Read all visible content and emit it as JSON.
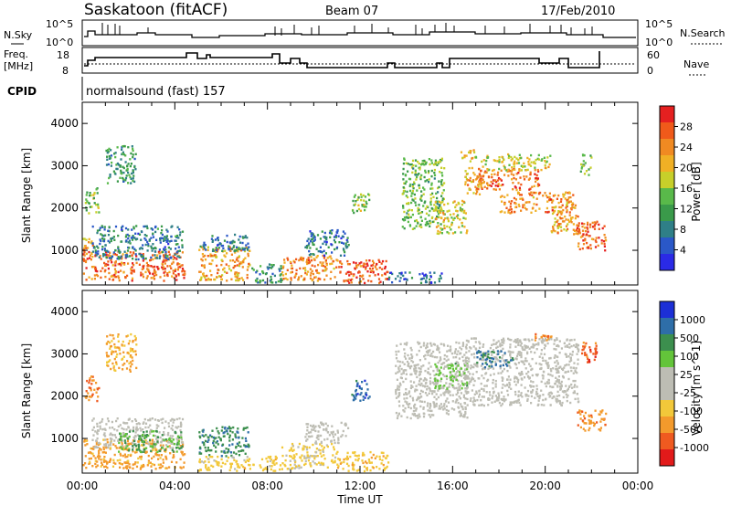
{
  "header": {
    "title": "Saskatoon (fitACF)",
    "beam": "Beam 07",
    "date": "17/Feb/2010"
  },
  "nsky_panel": {
    "left_label": "N.Sky",
    "right_label": "N.Search",
    "left_ticks": [
      "10^5",
      "10^0"
    ],
    "right_ticks": [
      "10^5",
      "10^0"
    ]
  },
  "freq_panel": {
    "left_label_1": "Freq.",
    "left_label_2": "[MHz]",
    "right_label": "Nave",
    "left_ticks": [
      "18",
      "8"
    ],
    "right_ticks": [
      "60",
      "0"
    ]
  },
  "cpid": {
    "label": "CPID",
    "value": "normalsound (fast) 157"
  },
  "colors": {
    "power": [
      "#2a2ae6",
      "#2a58c8",
      "#2f7f87",
      "#3a9a4a",
      "#59b94a",
      "#c7cf2a",
      "#f0b025",
      "#f08a22",
      "#f05a1a",
      "#e52020"
    ],
    "velocity": [
      "#1c2fd6",
      "#2e6ea8",
      "#3c8f4e",
      "#63c43a",
      "#bdbdb4",
      "#bdbdb4",
      "#f2c83a",
      "#f39a2c",
      "#ef5a20",
      "#e21a1a"
    ]
  },
  "chart_data": [
    {
      "type": "heatmap",
      "name": "power",
      "ylabel": "Slant Range [km]",
      "ylim": [
        180,
        4500
      ],
      "yticks": [
        "1000",
        "2000",
        "3000",
        "4000"
      ],
      "xlim": [
        0,
        24
      ],
      "colorbar_label": "Power [dB]",
      "colorbar_ticks": [
        "4",
        "8",
        "12",
        "16",
        "20",
        "24",
        "28"
      ],
      "colorbar_range": [
        0,
        32
      ],
      "patches": [
        {
          "t0": 0.0,
          "t1": 4.4,
          "r0": 300,
          "r1": 1000,
          "v": 26
        },
        {
          "t0": 0.0,
          "t1": 0.5,
          "r0": 900,
          "r1": 1300,
          "v": 22
        },
        {
          "t0": 0.1,
          "t1": 0.7,
          "r0": 1900,
          "r1": 2500,
          "v": 15
        },
        {
          "t0": 0.4,
          "t1": 4.3,
          "r0": 800,
          "r1": 1600,
          "v": 8
        },
        {
          "t0": 1.0,
          "t1": 2.3,
          "r0": 2600,
          "r1": 3500,
          "v": 11
        },
        {
          "t0": 5.0,
          "t1": 7.2,
          "r0": 300,
          "r1": 1100,
          "v": 22
        },
        {
          "t0": 5.0,
          "t1": 7.2,
          "r0": 1000,
          "r1": 1400,
          "v": 8
        },
        {
          "t0": 7.3,
          "t1": 8.6,
          "r0": 250,
          "r1": 700,
          "v": 10
        },
        {
          "t0": 8.6,
          "t1": 11.0,
          "r0": 300,
          "r1": 900,
          "v": 24
        },
        {
          "t0": 9.6,
          "t1": 11.5,
          "r0": 900,
          "r1": 1500,
          "v": 7
        },
        {
          "t0": 11.0,
          "t1": 13.2,
          "r0": 250,
          "r1": 800,
          "v": 27
        },
        {
          "t0": 11.6,
          "t1": 12.4,
          "r0": 1900,
          "r1": 2400,
          "v": 16
        },
        {
          "t0": 13.2,
          "t1": 15.5,
          "r0": 250,
          "r1": 500,
          "v": 6
        },
        {
          "t0": 13.8,
          "t1": 15.6,
          "r0": 1500,
          "r1": 3200,
          "v": 14
        },
        {
          "t0": 15.2,
          "t1": 16.6,
          "r0": 1400,
          "r1": 2200,
          "v": 18
        },
        {
          "t0": 16.5,
          "t1": 17.2,
          "r0": 2300,
          "r1": 3000,
          "v": 22
        },
        {
          "t0": 16.3,
          "t1": 17.0,
          "r0": 3100,
          "r1": 3400,
          "v": 20
        },
        {
          "t0": 17.0,
          "t1": 19.7,
          "r0": 2450,
          "r1": 2950,
          "v": 26
        },
        {
          "t0": 17.2,
          "t1": 20.2,
          "r0": 2900,
          "r1": 3300,
          "v": 18
        },
        {
          "t0": 18.0,
          "t1": 21.2,
          "r0": 1900,
          "r1": 2400,
          "v": 24
        },
        {
          "t0": 20.2,
          "t1": 21.4,
          "r0": 1400,
          "r1": 2100,
          "v": 22
        },
        {
          "t0": 21.3,
          "t1": 22.6,
          "r0": 1000,
          "r1": 1700,
          "v": 27
        },
        {
          "t0": 21.5,
          "t1": 22.0,
          "r0": 2800,
          "r1": 3300,
          "v": 14
        }
      ]
    },
    {
      "type": "heatmap",
      "name": "velocity",
      "ylabel": "Slant Range [km]",
      "ylim": [
        180,
        4500
      ],
      "yticks": [
        "1000",
        "2000",
        "3000",
        "4000"
      ],
      "xlim": [
        0,
        24
      ],
      "xlabel": "Time UT",
      "xticks": [
        "00:00",
        "04:00",
        "08:00",
        "12:00",
        "16:00",
        "20:00",
        "00:00"
      ],
      "colorbar_label": "Velocity [m s^-1]",
      "colorbar_ticks": [
        "1000",
        "500",
        "100",
        "25",
        "-25",
        "-100",
        "-500",
        "-1000"
      ],
      "patches": [
        {
          "t0": 0.0,
          "t1": 4.4,
          "r0": 300,
          "r1": 1000,
          "v": -150
        },
        {
          "t0": 0.1,
          "t1": 0.7,
          "r0": 1900,
          "r1": 2500,
          "v": -300
        },
        {
          "t0": 0.4,
          "t1": 4.3,
          "r0": 800,
          "r1": 1500,
          "v": 0
        },
        {
          "t0": 1.5,
          "t1": 4.3,
          "r0": 700,
          "r1": 1200,
          "v": 120
        },
        {
          "t0": 1.0,
          "t1": 2.3,
          "r0": 2600,
          "r1": 3500,
          "v": -120
        },
        {
          "t0": 5.0,
          "t1": 7.2,
          "r0": 600,
          "r1": 1300,
          "v": 200
        },
        {
          "t0": 5.0,
          "t1": 8.6,
          "r0": 250,
          "r1": 600,
          "v": -60
        },
        {
          "t0": 8.6,
          "t1": 11.0,
          "r0": 300,
          "r1": 900,
          "v": -40
        },
        {
          "t0": 9.6,
          "t1": 11.5,
          "r0": 900,
          "r1": 1400,
          "v": 0
        },
        {
          "t0": 11.0,
          "t1": 13.2,
          "r0": 250,
          "r1": 700,
          "v": -80
        },
        {
          "t0": 11.6,
          "t1": 12.4,
          "r0": 1900,
          "r1": 2400,
          "v": 400
        },
        {
          "t0": 13.5,
          "t1": 16.6,
          "r0": 1500,
          "r1": 3300,
          "v": 0
        },
        {
          "t0": 15.2,
          "t1": 16.6,
          "r0": 2200,
          "r1": 2800,
          "v": 60
        },
        {
          "t0": 16.5,
          "t1": 21.4,
          "r0": 1800,
          "r1": 3400,
          "v": 0
        },
        {
          "t0": 17.0,
          "t1": 18.6,
          "r0": 2700,
          "r1": 3100,
          "v": 300
        },
        {
          "t0": 21.3,
          "t1": 22.6,
          "r0": 1200,
          "r1": 1700,
          "v": -200
        },
        {
          "t0": 21.5,
          "t1": 22.3,
          "r0": 2800,
          "r1": 3300,
          "v": -400
        },
        {
          "t0": 19.5,
          "t1": 20.4,
          "r0": 3300,
          "r1": 3500,
          "v": -200
        }
      ]
    }
  ]
}
